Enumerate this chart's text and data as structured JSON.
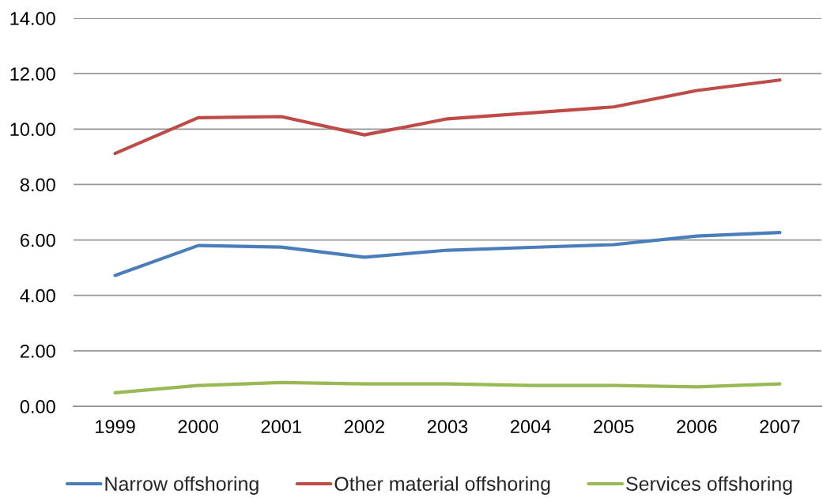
{
  "chart_data": {
    "type": "line",
    "categories": [
      "1999",
      "2000",
      "2001",
      "2002",
      "2003",
      "2004",
      "2005",
      "2006",
      "2007"
    ],
    "series": [
      {
        "name": "Narrow offshoring",
        "color": "#4a7ebb",
        "values": [
          4.72,
          5.8,
          5.74,
          5.38,
          5.63,
          5.73,
          5.83,
          6.14,
          6.27
        ]
      },
      {
        "name": "Other material offshoring",
        "color": "#be4b48",
        "values": [
          9.12,
          10.41,
          10.45,
          9.79,
          10.37,
          10.58,
          10.8,
          11.39,
          11.77
        ]
      },
      {
        "name": "Services offshoring",
        "color": "#98b954",
        "values": [
          0.49,
          0.75,
          0.86,
          0.81,
          0.81,
          0.75,
          0.75,
          0.7,
          0.81
        ]
      }
    ],
    "ylim": [
      0,
      14
    ],
    "yticks": [
      {
        "value": 0,
        "label": "0.00"
      },
      {
        "value": 2,
        "label": "2.00"
      },
      {
        "value": 4,
        "label": "4.00"
      },
      {
        "value": 6,
        "label": "6.00"
      },
      {
        "value": 8,
        "label": "8.00"
      },
      {
        "value": 10,
        "label": "10.00"
      },
      {
        "value": 12,
        "label": "12.00"
      },
      {
        "value": 14,
        "label": "14.00"
      }
    ],
    "grid": "y",
    "legend": "bottom",
    "marker": "none",
    "line_style": "solid"
  }
}
